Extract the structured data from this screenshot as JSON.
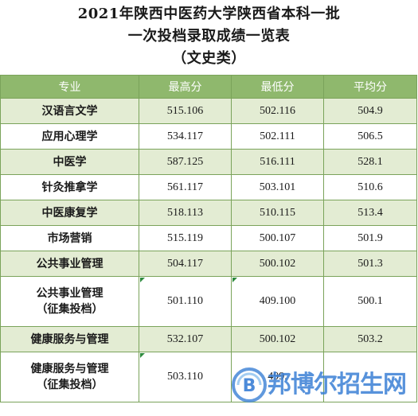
{
  "title": {
    "line1": "2021年陕西中医药大学陕西省本科一批",
    "line2": "一次投档录取成绩一览表",
    "line3": "（文史类）"
  },
  "table": {
    "headers": {
      "major": "专业",
      "max": "最高分",
      "min": "最低分",
      "avg": "平均分"
    },
    "rows": [
      {
        "major": "汉语言文学",
        "major2": "",
        "max": "515.106",
        "min": "502.116",
        "avg": "504.9"
      },
      {
        "major": "应用心理学",
        "major2": "",
        "max": "534.117",
        "min": "502.111",
        "avg": "506.5"
      },
      {
        "major": "中医学",
        "major2": "",
        "max": "587.125",
        "min": "516.111",
        "avg": "528.1"
      },
      {
        "major": "针灸推拿学",
        "major2": "",
        "max": "561.117",
        "min": "503.101",
        "avg": "510.6"
      },
      {
        "major": "中医康复学",
        "major2": "",
        "max": "518.113",
        "min": "510.115",
        "avg": "513.4"
      },
      {
        "major": "市场营销",
        "major2": "",
        "max": "515.119",
        "min": "500.107",
        "avg": "501.9"
      },
      {
        "major": "公共事业管理",
        "major2": "",
        "max": "504.117",
        "min": "500.102",
        "avg": "501.3"
      },
      {
        "major": "公共事业管理",
        "major2": "（征集投档）",
        "max": "501.110",
        "min": "409.100",
        "avg": "500.1"
      },
      {
        "major": "健康服务与管理",
        "major2": "",
        "max": "532.107",
        "min": "500.102",
        "avg": "503.2"
      },
      {
        "major": "健康服务与管理",
        "major2": "（征集投档）",
        "max": "503.110",
        "min": "499.",
        "avg": ""
      }
    ]
  },
  "watermark": {
    "text": "邦博尔招生网",
    "logo_letter": "B",
    "color": "#3a7fd5"
  },
  "colors": {
    "header_bg": "#8fb86d",
    "stripe_bg": "#e3ecd3",
    "border": "#7aa35a"
  }
}
